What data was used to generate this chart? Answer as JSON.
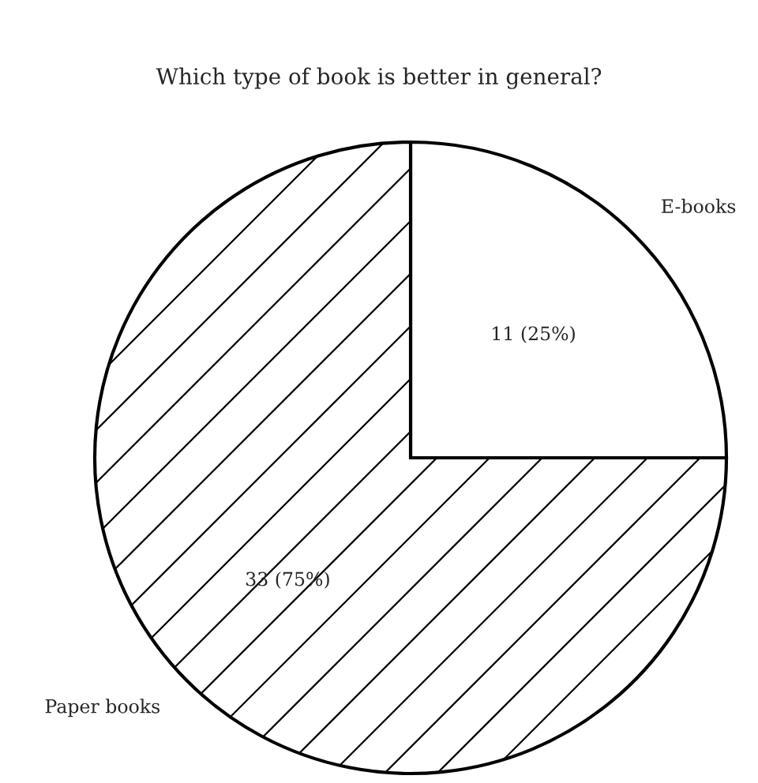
{
  "chart_data": {
    "type": "pie",
    "title": "Which type of book is better in general?",
    "categories": [
      "E-books",
      "Paper books"
    ],
    "values": [
      11,
      33
    ],
    "value_labels": [
      "11 (25%)",
      "33 (75%)"
    ],
    "colors": [
      "#ffffff",
      "#ffffff"
    ],
    "legend": false
  }
}
